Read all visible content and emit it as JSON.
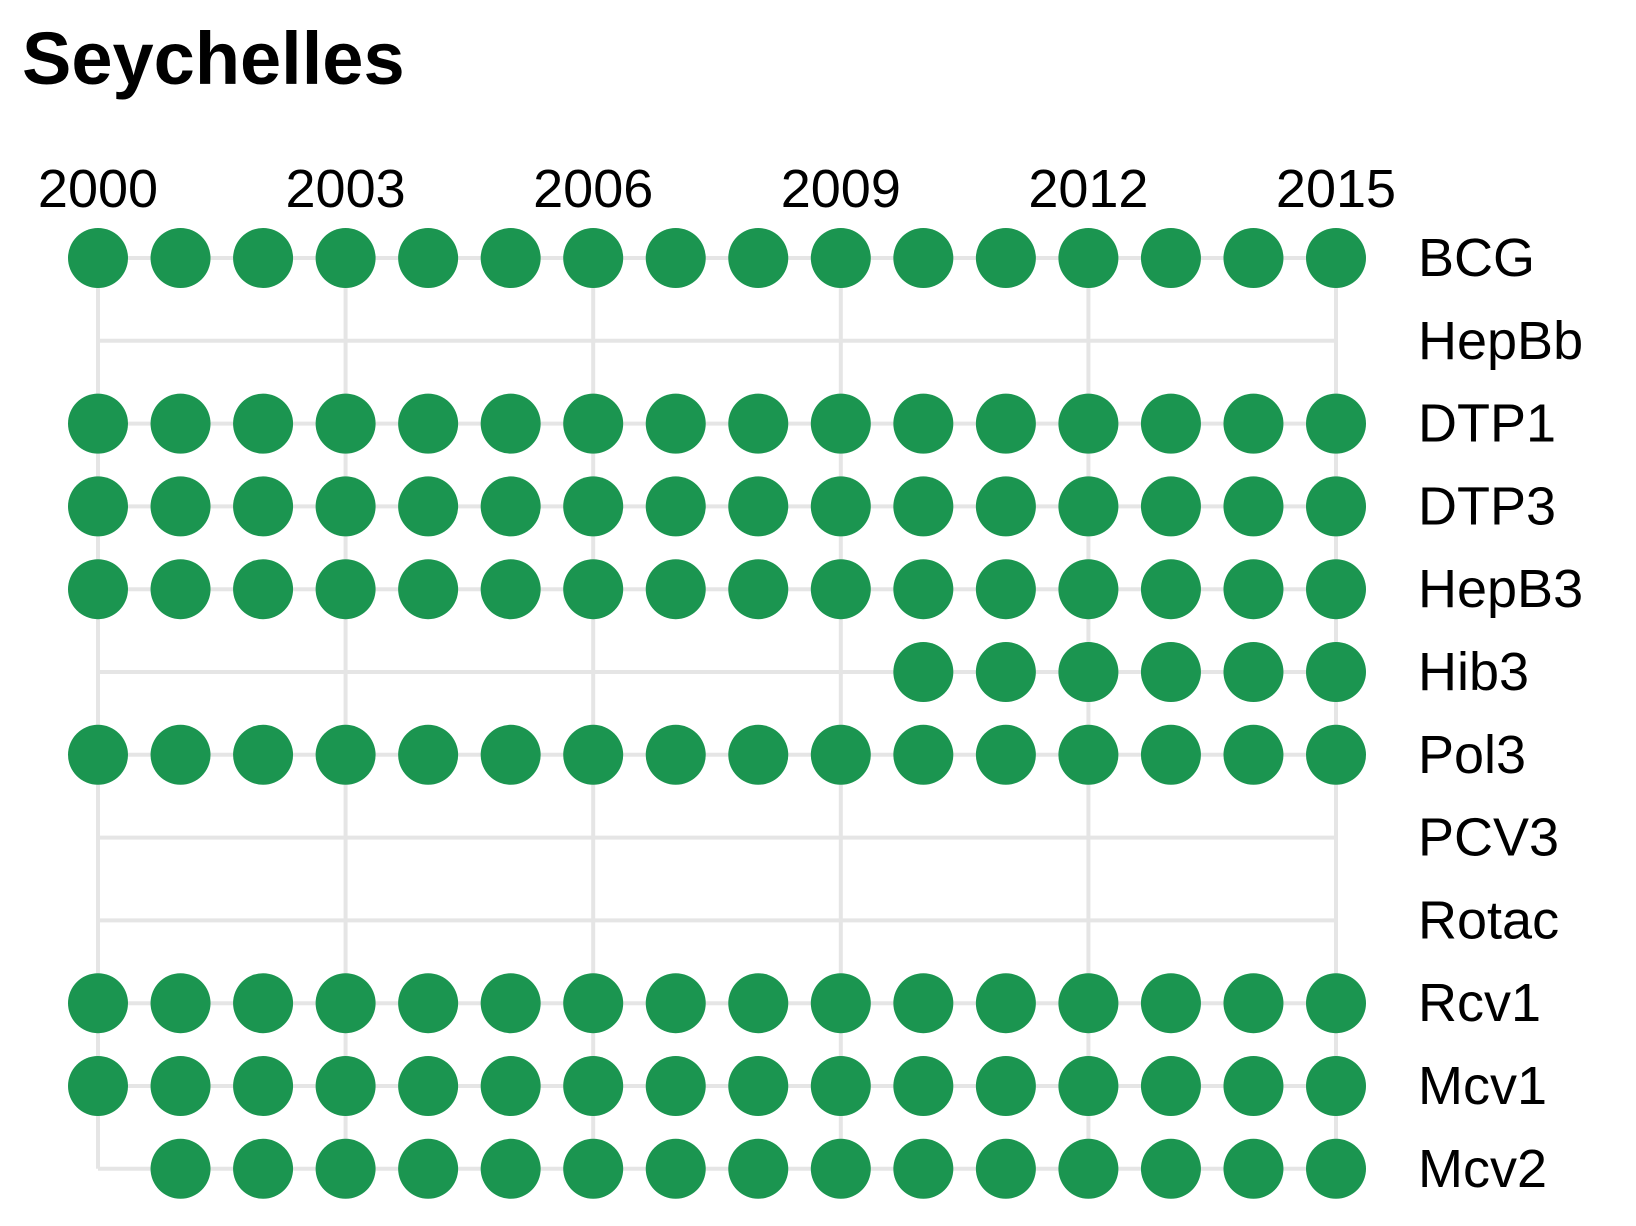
{
  "chart_data": {
    "type": "scatter",
    "title": "Seychelles",
    "x": [
      2000,
      2001,
      2002,
      2003,
      2004,
      2005,
      2006,
      2007,
      2008,
      2009,
      2010,
      2011,
      2012,
      2013,
      2014,
      2015
    ],
    "x_ticks": [
      2000,
      2003,
      2006,
      2009,
      2012,
      2015
    ],
    "xlim": [
      2000,
      2015
    ],
    "grid": true,
    "marker_color": "#1b9550",
    "grid_color": "#e5e5e5",
    "series": [
      {
        "name": "BCG",
        "values": [
          1,
          1,
          1,
          1,
          1,
          1,
          1,
          1,
          1,
          1,
          1,
          1,
          1,
          1,
          1,
          1
        ]
      },
      {
        "name": "HepBb",
        "values": [
          0,
          0,
          0,
          0,
          0,
          0,
          0,
          0,
          0,
          0,
          0,
          0,
          0,
          0,
          0,
          0
        ]
      },
      {
        "name": "DTP1",
        "values": [
          1,
          1,
          1,
          1,
          1,
          1,
          1,
          1,
          1,
          1,
          1,
          1,
          1,
          1,
          1,
          1
        ]
      },
      {
        "name": "DTP3",
        "values": [
          1,
          1,
          1,
          1,
          1,
          1,
          1,
          1,
          1,
          1,
          1,
          1,
          1,
          1,
          1,
          1
        ]
      },
      {
        "name": "HepB3",
        "values": [
          1,
          1,
          1,
          1,
          1,
          1,
          1,
          1,
          1,
          1,
          1,
          1,
          1,
          1,
          1,
          1
        ]
      },
      {
        "name": "Hib3",
        "values": [
          0,
          0,
          0,
          0,
          0,
          0,
          0,
          0,
          0,
          0,
          1,
          1,
          1,
          1,
          1,
          1
        ]
      },
      {
        "name": "Pol3",
        "values": [
          1,
          1,
          1,
          1,
          1,
          1,
          1,
          1,
          1,
          1,
          1,
          1,
          1,
          1,
          1,
          1
        ]
      },
      {
        "name": "PCV3",
        "values": [
          0,
          0,
          0,
          0,
          0,
          0,
          0,
          0,
          0,
          0,
          0,
          0,
          0,
          0,
          0,
          0
        ]
      },
      {
        "name": "Rotac",
        "values": [
          0,
          0,
          0,
          0,
          0,
          0,
          0,
          0,
          0,
          0,
          0,
          0,
          0,
          0,
          0,
          0
        ]
      },
      {
        "name": "Rcv1",
        "values": [
          1,
          1,
          1,
          1,
          1,
          1,
          1,
          1,
          1,
          1,
          1,
          1,
          1,
          1,
          1,
          1
        ]
      },
      {
        "name": "Mcv1",
        "values": [
          1,
          1,
          1,
          1,
          1,
          1,
          1,
          1,
          1,
          1,
          1,
          1,
          1,
          1,
          1,
          1
        ]
      },
      {
        "name": "Mcv2",
        "values": [
          0,
          1,
          1,
          1,
          1,
          1,
          1,
          1,
          1,
          1,
          1,
          1,
          1,
          1,
          1,
          1
        ]
      }
    ]
  }
}
